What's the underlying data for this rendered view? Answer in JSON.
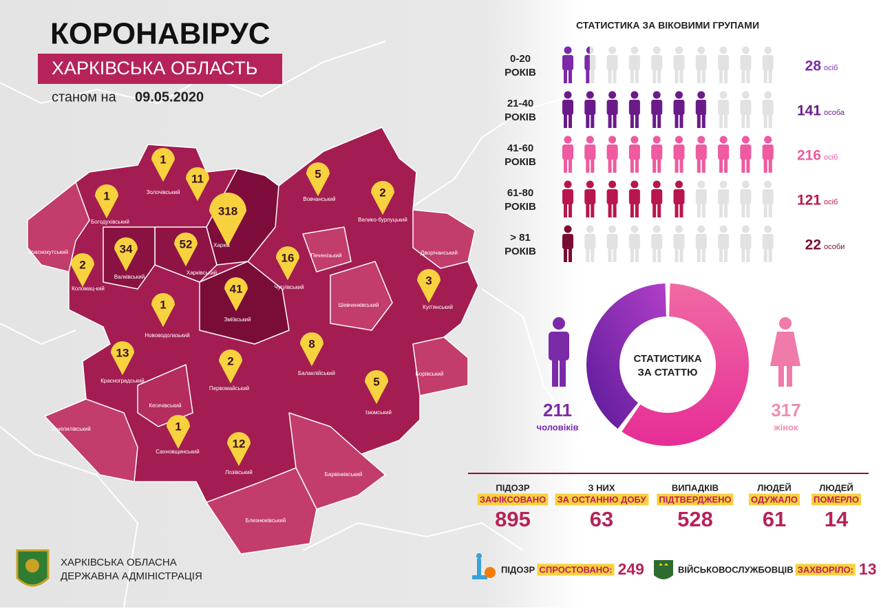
{
  "header": {
    "title": "КОРОНАВІРУС",
    "subtitle": "ХАРКІВСЬКА ОБЛАСТЬ",
    "date_prefix": "станом на",
    "date": "09.05.2020"
  },
  "map": {
    "districts": [
      {
        "name": "Богодухівський",
        "cases": 1
      },
      {
        "name": "Золочівський",
        "cases": 1
      },
      {
        "cases": 11
      },
      {
        "name": "Харків",
        "cases": 318
      },
      {
        "name": "Харківський",
        "cases": 52
      },
      {
        "name": "Валківський",
        "cases": 34
      },
      {
        "name": "Краснокутський"
      },
      {
        "name": "Коломац-кий",
        "cases": 2
      },
      {
        "name": "Вовчанський",
        "cases": 5
      },
      {
        "name": "Велико-бурлуцький",
        "cases": 2
      },
      {
        "name": "Печенізький"
      },
      {
        "name": "Чугуївський",
        "cases": 16
      },
      {
        "name": "Дворічанський"
      },
      {
        "name": "Куп'янський",
        "cases": 3
      },
      {
        "name": "Шевченківський"
      },
      {
        "name": "Зміївський",
        "cases": 41
      },
      {
        "name": "Нововодолазький",
        "cases": 1
      },
      {
        "name": "Балаклійський",
        "cases": 8
      },
      {
        "name": "Борівський"
      },
      {
        "name": "Красноградський",
        "cases": 13
      },
      {
        "name": "Первомайський",
        "cases": 2
      },
      {
        "name": "Ізюмський",
        "cases": 5
      },
      {
        "name": "Кегичівський"
      },
      {
        "name": "Зачепилівський"
      },
      {
        "name": "Сахновщинський",
        "cases": 1
      },
      {
        "name": "Лозівський",
        "cases": 12
      },
      {
        "name": "Барвінківський"
      },
      {
        "name": "Близнюківський"
      }
    ]
  },
  "age_stats": {
    "title": "СТАТИСТИКА ЗА ВІКОВИМИ ГРУПАМИ",
    "groups": [
      {
        "range": "0-20",
        "suffix": "РОКІВ",
        "value": 28,
        "unit": "осіб"
      },
      {
        "range": "21-40",
        "suffix": "РОКІВ",
        "value": 141,
        "unit": "особа"
      },
      {
        "range": "41-60",
        "suffix": "РОКІВ",
        "value": 216,
        "unit": "осіб"
      },
      {
        "range": "61-80",
        "suffix": "РОКІВ",
        "value": 121,
        "unit": "осіб"
      },
      {
        "range": "> 81",
        "suffix": "РОКІВ",
        "value": 22,
        "unit": "особи"
      }
    ]
  },
  "gender": {
    "title_lines": [
      "СТАТИСТИКА",
      "ЗА СТАТТЮ"
    ],
    "men": {
      "value": 211,
      "label": "чоловіків"
    },
    "women": {
      "value": 317,
      "label": "жінок"
    }
  },
  "summary": [
    {
      "line1": "ПІДОЗР",
      "line2": "ЗАФІКСОВАНО",
      "value": 895
    },
    {
      "line1": "З НИХ",
      "line2": "ЗА ОСТАННЮ ДОБУ",
      "value": 63
    },
    {
      "line1": "ВИПАДКІВ",
      "line2": "ПІДТВЕРДЖЕНО",
      "value": 528
    },
    {
      "line1": "ЛЮДЕЙ",
      "line2": "ОДУЖАЛО",
      "value": 61
    },
    {
      "line1": "ЛЮДЕЙ",
      "line2": "ПОМЕРЛО",
      "value": 14
    }
  ],
  "footer": {
    "refuted": {
      "prefix": "ПІДОЗР",
      "highlight": "СПРОСТОВАНО:",
      "value": 249
    },
    "military": {
      "prefix": "ВІЙСЬКОВОСЛУЖБОВЦІВ",
      "highlight": "ЗАХВОРІЛО:",
      "value": 13
    },
    "logo_lines": [
      "ХАРКІВСЬКА ОБЛАСНА",
      "ДЕРЖАВНА АДМІНІСТРАЦІЯ"
    ]
  }
}
